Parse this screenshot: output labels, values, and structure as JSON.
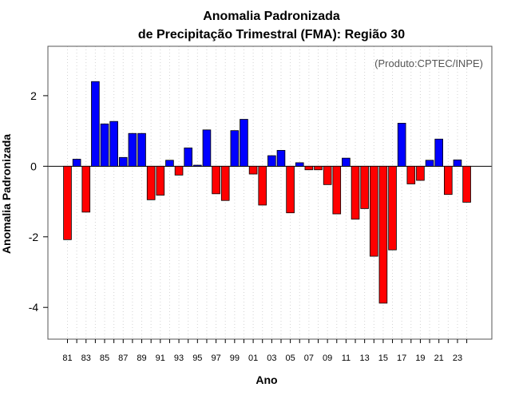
{
  "chart_data": {
    "type": "bar",
    "title_line1": "Anomalia Padronizada",
    "title_line2": "de Precipitação Trimestral (FMA): Região 30",
    "xlabel": "Ano",
    "ylabel": "Anomalia Padronizada",
    "credit": "(Produto:CPTEC/INPE)",
    "ylim": [
      -4.9,
      3.4
    ],
    "yticks": [
      -4,
      -2,
      0,
      2
    ],
    "ytick_labels": [
      "-4",
      "-2",
      "0",
      "2"
    ],
    "xtick_labels": [
      "81",
      "83",
      "85",
      "87",
      "89",
      "91",
      "93",
      "95",
      "97",
      "99",
      "01",
      "03",
      "05",
      "07",
      "09",
      "11",
      "13",
      "15",
      "17",
      "19",
      "21",
      "23"
    ],
    "positive_color": "#0000ff",
    "negative_color": "#ff0000",
    "grid": true,
    "categories": [
      "1981",
      "1982",
      "1983",
      "1984",
      "1985",
      "1986",
      "1987",
      "1988",
      "1989",
      "1990",
      "1991",
      "1992",
      "1993",
      "1994",
      "1995",
      "1996",
      "1997",
      "1998",
      "1999",
      "2000",
      "2001",
      "2002",
      "2003",
      "2004",
      "2005",
      "2006",
      "2007",
      "2008",
      "2009",
      "2010",
      "2011",
      "2012",
      "2013",
      "2014",
      "2015",
      "2016",
      "2017",
      "2018",
      "2019",
      "2020",
      "2021",
      "2022",
      "2023",
      "2024"
    ],
    "values": [
      -2.08,
      0.2,
      -1.3,
      2.4,
      1.2,
      1.27,
      0.25,
      0.93,
      0.93,
      -0.95,
      -0.82,
      0.17,
      -0.25,
      0.52,
      0.03,
      1.03,
      -0.78,
      -0.97,
      1.01,
      1.33,
      -0.22,
      -1.1,
      0.3,
      0.45,
      -1.32,
      0.1,
      -0.1,
      -0.1,
      -0.52,
      -1.35,
      0.23,
      -1.5,
      -1.2,
      -2.55,
      -3.88,
      -2.37,
      1.22,
      -0.5,
      -0.4,
      0.17,
      0.77,
      -0.8,
      0.18,
      -1.02
    ]
  }
}
